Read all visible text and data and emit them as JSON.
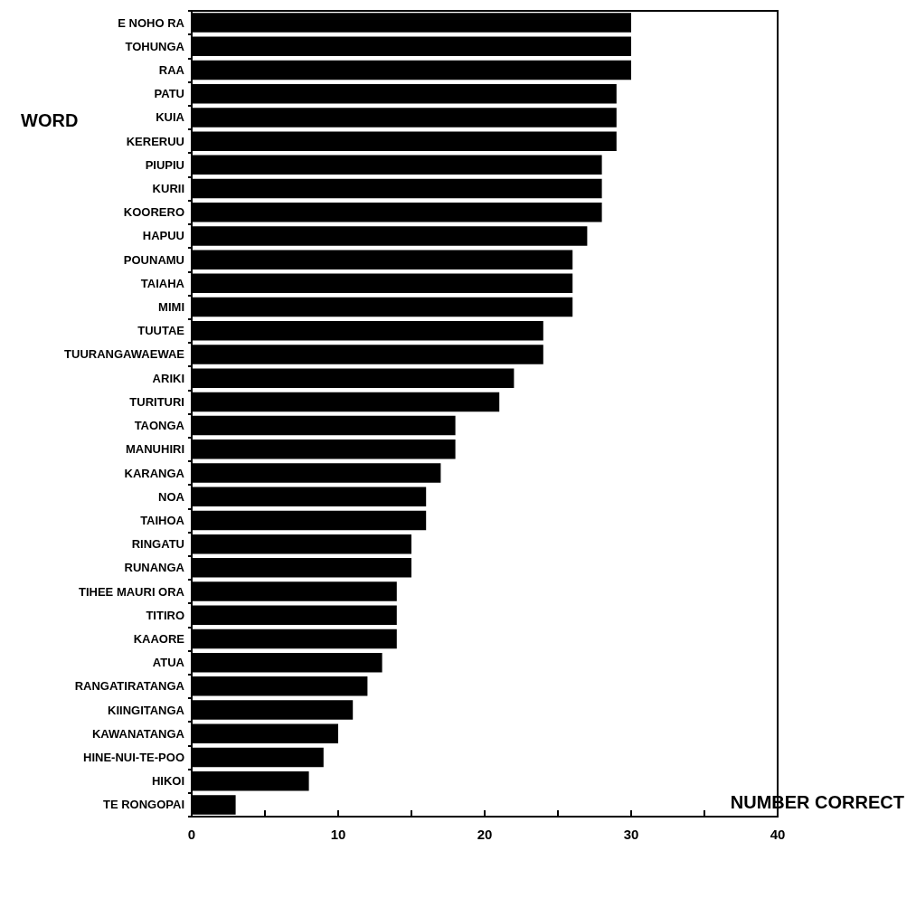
{
  "chart_data": {
    "type": "bar",
    "orientation": "horizontal",
    "xlabel": "NUMBER CORRECT",
    "ylabel": "WORD",
    "categories": [
      "E NOHO RA",
      "TOHUNGA",
      "RAA",
      "PATU",
      "KUIA",
      "KERERUU",
      "PIUPIU",
      "KURII",
      "KOORERO",
      "HAPUU",
      "POUNAMU",
      "TAIAHA",
      "MIMI",
      "TUUTAE",
      "TUURANGAWAEWAE",
      "ARIKI",
      "TURITURI",
      "TAONGA",
      "MANUHIRI",
      "KARANGA",
      "NOA",
      "TAIHOA",
      "RINGATU",
      "RUNANGA",
      "TIHEE MAURI ORA",
      "TITIRO",
      "KAAORE",
      "ATUA",
      "RANGATIRATANGA",
      "KIINGITANGA",
      "KAWANATANGA",
      "HINE-NUI-TE-POO",
      "HIKOI",
      "TE RONGOPAI"
    ],
    "values": [
      30,
      30,
      30,
      29,
      29,
      29,
      28,
      28,
      28,
      27,
      26,
      26,
      26,
      24,
      24,
      22,
      21,
      18,
      18,
      17,
      16,
      16,
      15,
      15,
      14,
      14,
      14,
      13,
      12,
      11,
      10,
      9,
      8,
      3
    ],
    "color": "#000000",
    "xlim": [
      0,
      40
    ],
    "xticks": [
      0,
      {
        "value": 5,
        "label": null
      },
      10,
      {
        "value": 15,
        "label": null
      },
      20,
      {
        "value": 25,
        "label": null
      },
      30,
      {
        "value": 35,
        "label": null
      },
      40
    ],
    "grid": false
  }
}
